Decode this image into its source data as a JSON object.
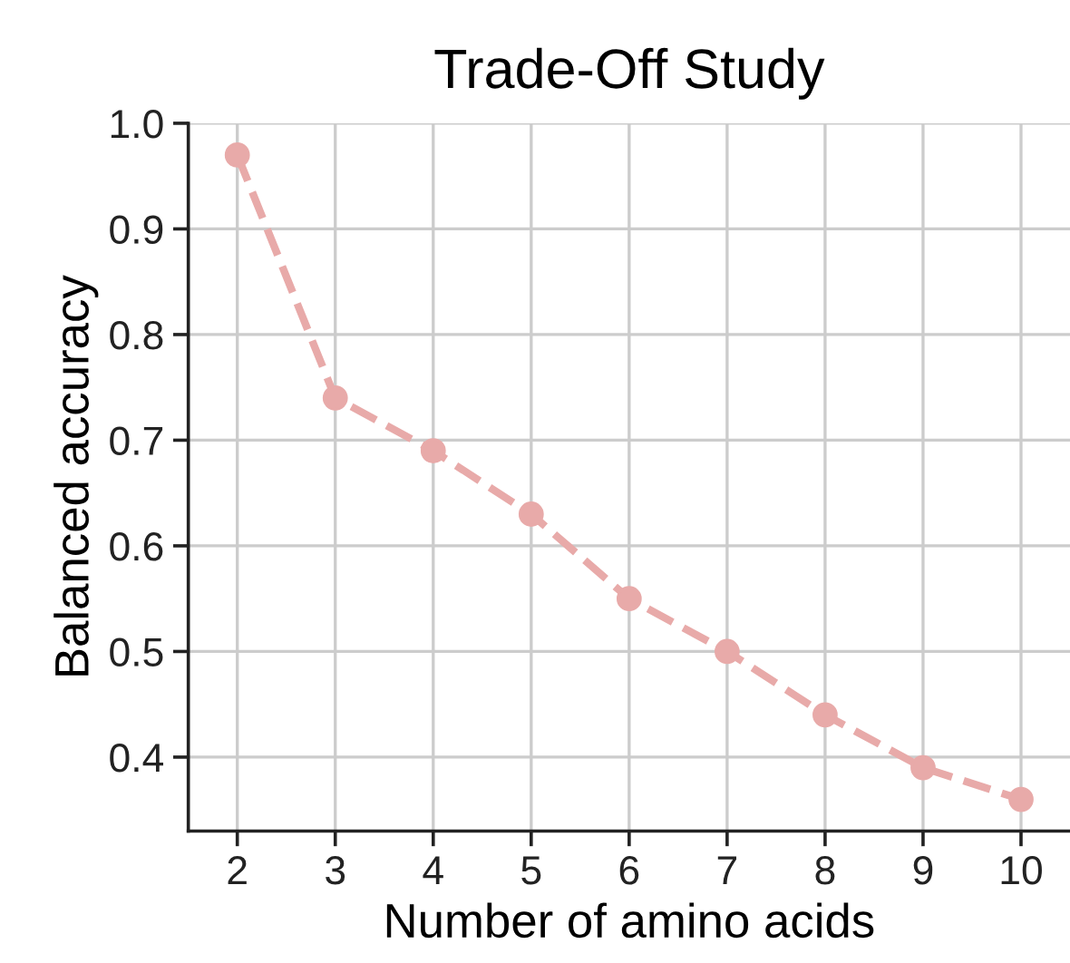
{
  "chart_data": {
    "type": "line",
    "title": "Trade-Off Study",
    "xlabel": "Number of amino acids",
    "ylabel": "Balanced accuracy",
    "x": [
      2,
      3,
      4,
      5,
      6,
      7,
      8,
      9,
      10
    ],
    "series": [
      {
        "color": "#e8aaa9",
        "values": [
          0.97,
          0.74,
          0.69,
          0.63,
          0.55,
          0.5,
          0.44,
          0.39,
          0.36
        ]
      }
    ],
    "xlim": [
      1.5,
      10.5
    ],
    "xticks": [
      2,
      3,
      4,
      5,
      6,
      7,
      8,
      9,
      10
    ],
    "ylim": [
      0.33,
      1.0
    ],
    "yticks": [
      0.4,
      0.5,
      0.6,
      0.7,
      0.8,
      0.9,
      {
        "value": 1.0,
        "label": "1.0"
      }
    ],
    "grid": true,
    "marker": "circle",
    "line_style": "dashed"
  }
}
